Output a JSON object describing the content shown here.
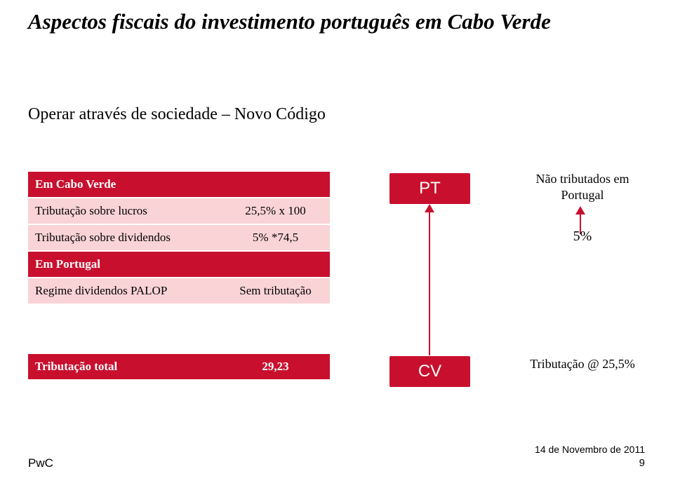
{
  "title": "Aspectos fiscais do investimento português em Cabo Verde",
  "subtitle": "Operar através de sociedade – Novo Código",
  "table": {
    "section1_header": "Em Cabo Verde",
    "row1_label": "Tributação sobre lucros",
    "row1_value": "25,5% x 100",
    "row2_label": "Tributação sobre dividendos",
    "row2_value": "5% *74,5",
    "section2_header": "Em Portugal",
    "row3_label": "Regime dividendos PALOP",
    "row3_value": "Sem tributação"
  },
  "total": {
    "label": "Tributação total",
    "value": "29,23"
  },
  "badges": {
    "pt": "PT",
    "cv": "CV"
  },
  "annot": {
    "top": "Não tributados em Portugal",
    "mid": "5%",
    "bot": "Tributação @ 25,5%"
  },
  "footer": {
    "brand": "PwC",
    "date": "14 de Novembro de 2011",
    "page": "9"
  },
  "colors": {
    "accent": "#c8102e",
    "accent_light": "#f9d3d6",
    "text": "#000000",
    "bg": "#ffffff"
  }
}
